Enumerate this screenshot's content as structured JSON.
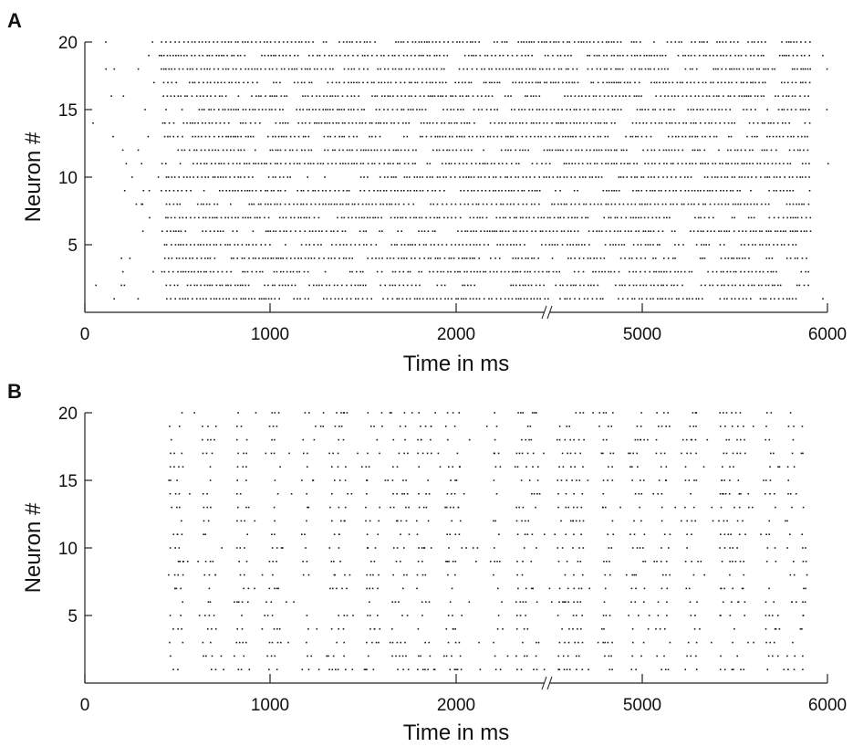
{
  "chart_data": [
    {
      "type": "scatter",
      "subtype": "raster",
      "panel": "A",
      "xlabel": "Time in ms",
      "ylabel": "Neuron #",
      "x_segments": [
        [
          0,
          2000
        ],
        [
          5000,
          6000
        ]
      ],
      "xlim_label": [
        0,
        6000
      ],
      "ylim": [
        0,
        20
      ],
      "xticks": [
        "0",
        "1000",
        "2000",
        "5000",
        "6000"
      ],
      "yticks": [
        "5",
        "10",
        "15",
        "20"
      ],
      "axis_break_at": 2500,
      "grid": false,
      "color": "#1a1a1a",
      "neurons": 20,
      "pattern": "sparse irregular spikes before ~400 ms, then dense nearly continuous firing on all neurons until ~5900 ms"
    },
    {
      "type": "scatter",
      "subtype": "raster",
      "panel": "B",
      "xlabel": "Time in ms",
      "ylabel": "Neuron #",
      "x_segments": [
        [
          0,
          2000
        ],
        [
          5000,
          6000
        ]
      ],
      "xlim_label": [
        0,
        6000
      ],
      "ylim": [
        0,
        20
      ],
      "xticks": [
        "0",
        "1000",
        "2000",
        "5000",
        "6000"
      ],
      "yticks": [
        "5",
        "10",
        "15",
        "20"
      ],
      "axis_break_at": 2500,
      "grid": false,
      "color": "#1a1a1a",
      "neurons": 20,
      "pattern": "synchronized bursts of spikes across all neurons from ~450 ms to ~5900 ms, separated by quieter gaps"
    }
  ]
}
